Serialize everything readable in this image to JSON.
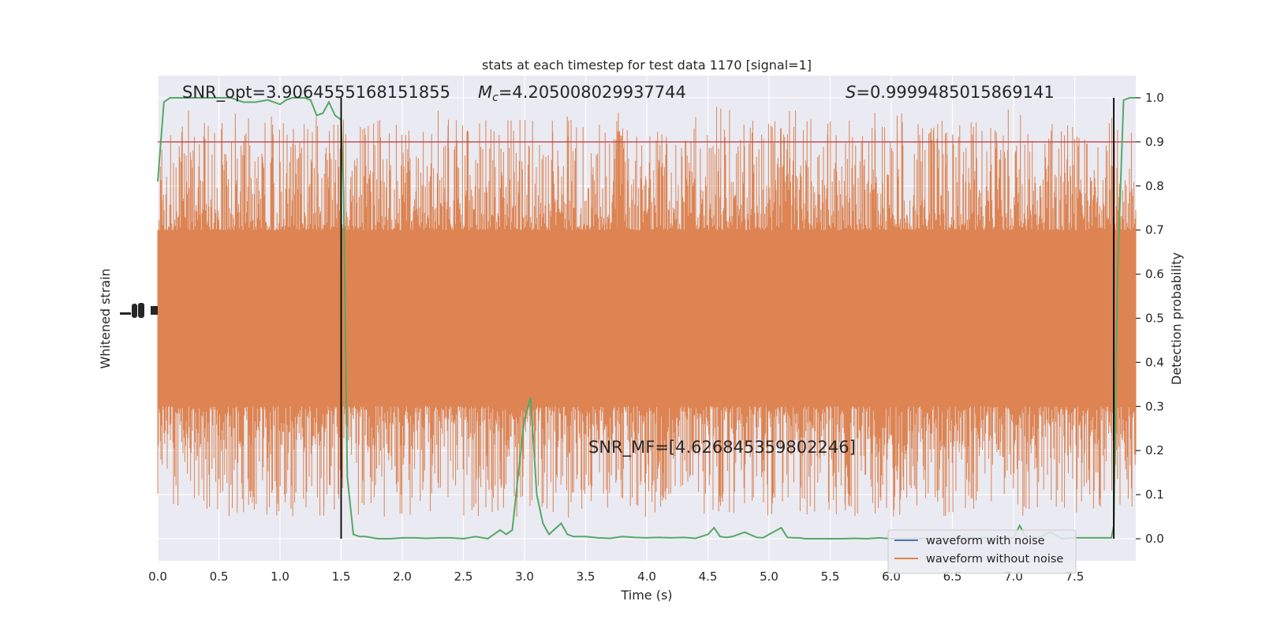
{
  "chart_data": {
    "type": "line",
    "title": "stats at each timestep for test data 1170 [signal=1]",
    "xlabel": "Time (s)",
    "ylabel_left": "Whitened strain",
    "ylabel_right": "Detection probability",
    "xlim": [
      0,
      8
    ],
    "ylim_right": [
      -0.05,
      1.05
    ],
    "x_ticks": [
      "0.0",
      "0.5",
      "1.0",
      "1.5",
      "2.0",
      "2.5",
      "3.0",
      "3.5",
      "4.0",
      "4.5",
      "5.0",
      "5.5",
      "6.0",
      "6.5",
      "7.0",
      "7.5"
    ],
    "y_ticks_right": [
      "0.0",
      "0.1",
      "0.2",
      "0.3",
      "0.4",
      "0.5",
      "0.6",
      "0.7",
      "0.8",
      "0.9",
      "1.0"
    ],
    "grid": true,
    "legend_position": "lower right",
    "annotations": {
      "snr_opt": "SNR_opt=3.9064555168151855",
      "mc_symbol": "M",
      "mc_sub": "c",
      "mc_value": "=4.205008029937744",
      "s_symbol": "S",
      "s_value": "=0.9999485015869141",
      "snr_mf": "SNR_MF=[4.626845359802246]"
    },
    "threshold": 0.9,
    "vertical_lines": [
      1.5,
      7.82
    ],
    "series": [
      {
        "name": "waveform with noise",
        "color": "#4c72b0",
        "note_values": "strain series drawn hidden beneath orange trace"
      },
      {
        "name": "waveform without noise",
        "color": "#dd8452",
        "envelope_band": [
          0.3,
          0.7
        ],
        "spike_range": [
          0.0,
          1.0
        ]
      }
    ],
    "detection_probability": {
      "color": "#55a868",
      "x": [
        0.0,
        0.05,
        0.1,
        0.15,
        0.2,
        0.3,
        0.4,
        0.5,
        0.6,
        0.7,
        0.8,
        0.9,
        1.0,
        1.05,
        1.1,
        1.15,
        1.2,
        1.25,
        1.3,
        1.35,
        1.4,
        1.45,
        1.5,
        1.52,
        1.55,
        1.6,
        1.65,
        1.7,
        1.8,
        1.9,
        2.0,
        2.1,
        2.2,
        2.3,
        2.4,
        2.5,
        2.6,
        2.7,
        2.8,
        2.85,
        2.9,
        2.95,
        3.0,
        3.05,
        3.1,
        3.15,
        3.2,
        3.3,
        3.35,
        3.4,
        3.5,
        3.6,
        3.7,
        3.8,
        3.9,
        4.0,
        4.1,
        4.2,
        4.3,
        4.4,
        4.5,
        4.55,
        4.6,
        4.65,
        4.7,
        4.8,
        4.9,
        4.95,
        5.0,
        5.1,
        5.15,
        5.2,
        5.25,
        5.3,
        5.4,
        5.5,
        5.6,
        5.7,
        5.8,
        5.9,
        6.0,
        6.2,
        6.4,
        6.6,
        6.8,
        7.0,
        7.05,
        7.1,
        7.2,
        7.3,
        7.4,
        7.5,
        7.6,
        7.7,
        7.8,
        7.82,
        7.85,
        7.9,
        7.95,
        8.0
      ],
      "y": [
        0.81,
        0.99,
        1.0,
        1.0,
        1.0,
        1.0,
        1.0,
        1.0,
        1.0,
        0.99,
        0.99,
        0.995,
        0.985,
        0.995,
        1.0,
        1.0,
        1.0,
        0.995,
        0.96,
        0.965,
        0.99,
        0.96,
        0.95,
        0.79,
        0.14,
        0.01,
        0.005,
        0.005,
        0.0,
        0.0,
        0.002,
        0.002,
        0.001,
        0.002,
        0.002,
        0.0,
        0.005,
        0.0,
        0.02,
        0.01,
        0.02,
        0.15,
        0.27,
        0.32,
        0.1,
        0.035,
        0.01,
        0.035,
        0.01,
        0.005,
        0.005,
        0.002,
        0.001,
        0.005,
        0.003,
        0.002,
        0.003,
        0.002,
        0.003,
        0.001,
        0.01,
        0.025,
        0.005,
        0.003,
        0.005,
        0.015,
        0.003,
        0.002,
        0.01,
        0.025,
        0.003,
        0.002,
        0.002,
        0.0,
        0.0,
        0.0,
        0.0,
        0.001,
        0.0,
        0.002,
        0.0,
        0.001,
        0.0,
        0.002,
        0.002,
        0.002,
        0.03,
        0.005,
        0.002,
        0.015,
        0.0,
        0.002,
        0.002,
        0.002,
        0.002,
        0.03,
        0.6,
        0.995,
        1.0,
        1.0
      ]
    },
    "legend": [
      "waveform with noise",
      "waveform without noise"
    ],
    "colors": {
      "plot_bg": "#eaeaf2",
      "grid": "#ffffff",
      "orange": "#dd8452",
      "green": "#55a868",
      "blue": "#4c72b0",
      "threshold": "#c44e52",
      "vline": "#000000"
    }
  }
}
